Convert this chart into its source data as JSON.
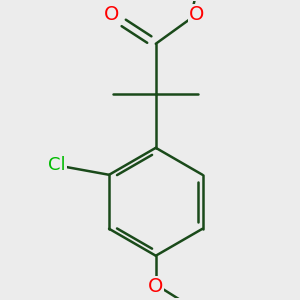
{
  "background_color": "#ececec",
  "bond_color": "#1a4a1a",
  "bond_width": 1.8,
  "atom_colors": {
    "O": "#ff0000",
    "Cl": "#00bb00",
    "C": "#000000"
  },
  "font_size_O": 14,
  "font_size_Cl": 13
}
